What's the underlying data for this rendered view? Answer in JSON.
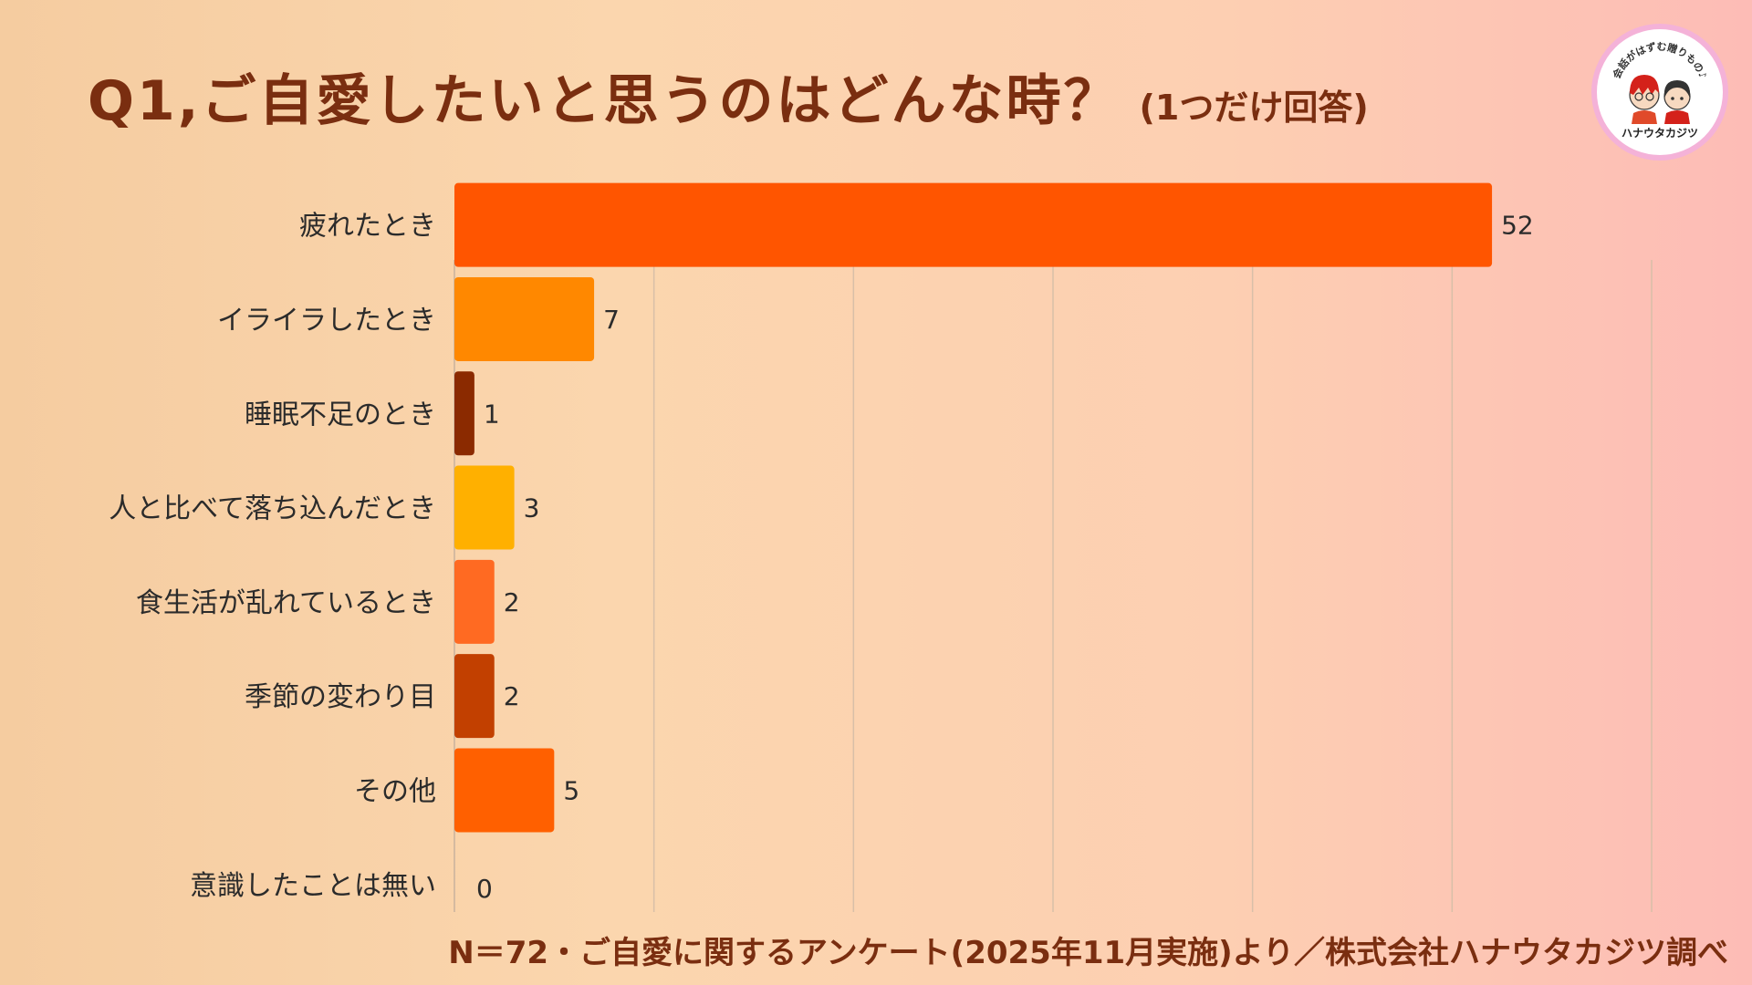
{
  "title": "Q1,ご自愛したいと思うのはどんな時？",
  "subtitle": "(1つだけ回答)",
  "logo": {
    "top_text": "会話がはずむ贈りもの♪",
    "bottom_text": "ハナウタカジツ"
  },
  "footer": "N＝72・ご自愛に関するアンケート(2025年11月実施)より／株式会社ハナウタカジツ調べ",
  "chart_data": {
    "type": "bar",
    "orientation": "horizontal",
    "categories": [
      "疲れたとき",
      "イライラしたとき",
      "睡眠不足のとき",
      "人と比べて落ち込んだとき",
      "食生活が乱れているとき",
      "季節の変わり目",
      "その他",
      "意識したことは無い"
    ],
    "values": [
      52,
      7,
      1,
      3,
      2,
      2,
      5,
      0
    ],
    "colors": [
      "#ff5500",
      "#ff8800",
      "#8b2a00",
      "#ffb000",
      "#ff6a22",
      "#c24000",
      "#ff6000",
      "#ff6000"
    ],
    "xlim": [
      0,
      60
    ],
    "grid": true,
    "data_labels": true
  }
}
